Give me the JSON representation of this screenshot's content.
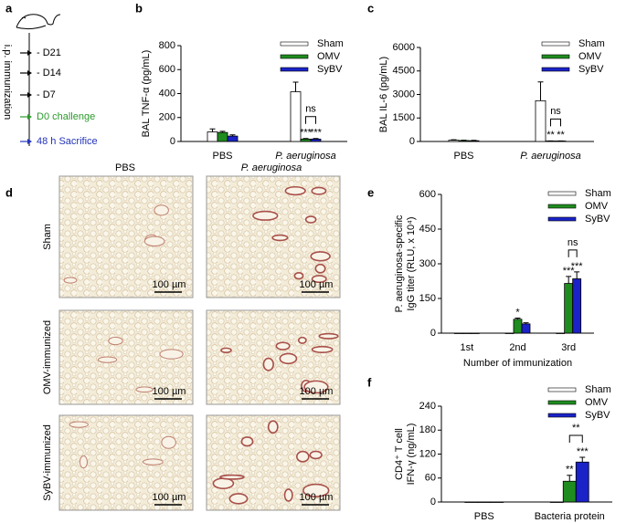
{
  "timeline": {
    "panel_label": "a",
    "axis_label": "i.p. immunization",
    "events": [
      "- D21",
      "- D14",
      "- D7",
      "D0 challenge",
      "48 h Sacrifice"
    ],
    "colors": [
      "#000000",
      "#000000",
      "#000000",
      "#2a9a2a",
      "#2233bb"
    ]
  },
  "histology": {
    "panel_label": "d",
    "columns": [
      "PBS",
      "P. aeruginosa"
    ],
    "rows": [
      "Sham",
      "OMV-immunized",
      "SyBV-immunized"
    ],
    "scale_bar": "100 µm"
  },
  "chart_data": [
    {
      "type": "bar",
      "panel_label": "b",
      "y_label": "BAL TNF-α (pg/mL)",
      "categories": [
        "PBS",
        "P. aeruginosa"
      ],
      "series": [
        {
          "name": "Sham",
          "color": "#ffffff",
          "values": [
            80,
            415
          ],
          "errors": [
            25,
            80
          ],
          "annotations": [
            null,
            null
          ]
        },
        {
          "name": "OMV",
          "color": "#1f8c1f",
          "values": [
            75,
            20
          ],
          "errors": [
            10,
            5
          ],
          "annotations": [
            null,
            "***"
          ]
        },
        {
          "name": "SyBV",
          "color": "#1a22c8",
          "values": [
            45,
            20
          ],
          "errors": [
            10,
            5
          ],
          "annotations": [
            null,
            "***"
          ]
        }
      ],
      "bracket_label": "ns",
      "ylim": [
        0,
        800
      ],
      "yticks": [
        0,
        200,
        400,
        600,
        800
      ],
      "grid": false
    },
    {
      "type": "bar",
      "panel_label": "c",
      "y_label": "BAL IL-6 (pg/mL)",
      "categories": [
        "PBS",
        "P. aeruginosa"
      ],
      "series": [
        {
          "name": "Sham",
          "color": "#ffffff",
          "values": [
            80,
            2600
          ],
          "errors": [
            30,
            1200
          ],
          "annotations": [
            null,
            null
          ]
        },
        {
          "name": "OMV",
          "color": "#1f8c1f",
          "values": [
            60,
            30
          ],
          "errors": [
            20,
            10
          ],
          "annotations": [
            null,
            "**"
          ]
        },
        {
          "name": "SyBV",
          "color": "#1a22c8",
          "values": [
            50,
            30
          ],
          "errors": [
            20,
            10
          ],
          "annotations": [
            null,
            "**"
          ]
        }
      ],
      "bracket_label": "ns",
      "ylim": [
        0,
        6000
      ],
      "yticks": [
        0,
        1500,
        3000,
        4500,
        6000
      ],
      "grid": false
    },
    {
      "type": "bar",
      "panel_label": "e",
      "y_label": [
        "P. aeruginosa-specific",
        "IgG titer (RLU, x 10⁴)"
      ],
      "x_label": "Number of immunization",
      "categories": [
        "1st",
        "2nd",
        "3rd"
      ],
      "series": [
        {
          "name": "Sham",
          "color": "#ffffff",
          "values": [
            0,
            0,
            0
          ],
          "errors": [
            0,
            0,
            0
          ],
          "annotations": [
            null,
            null,
            null
          ]
        },
        {
          "name": "OMV",
          "color": "#1f8c1f",
          "values": [
            0,
            60,
            215
          ],
          "errors": [
            0,
            5,
            30
          ],
          "annotations": [
            null,
            "*",
            "***"
          ]
        },
        {
          "name": "SyBV",
          "color": "#1a22c8",
          "values": [
            0,
            40,
            235
          ],
          "errors": [
            0,
            5,
            30
          ],
          "annotations": [
            null,
            null,
            "***"
          ]
        }
      ],
      "bracket_label": "ns",
      "ylim": [
        0,
        600
      ],
      "yticks": [
        0,
        150,
        300,
        450,
        600
      ],
      "grid": false
    },
    {
      "type": "bar",
      "panel_label": "f",
      "y_label": [
        "CD4⁺ T cell",
        "IFN-γ (ng/mL)"
      ],
      "categories": [
        "PBS",
        "Bacteria protein"
      ],
      "series": [
        {
          "name": "Sham",
          "color": "#ffffff",
          "values": [
            0,
            0
          ],
          "errors": [
            0,
            0
          ],
          "annotations": [
            null,
            null
          ]
        },
        {
          "name": "OMV",
          "color": "#1f8c1f",
          "values": [
            0,
            52
          ],
          "errors": [
            0,
            15
          ],
          "annotations": [
            null,
            "**"
          ]
        },
        {
          "name": "SyBV",
          "color": "#1a22c8",
          "values": [
            0,
            100
          ],
          "errors": [
            0,
            12
          ],
          "annotations": [
            null,
            "***"
          ]
        }
      ],
      "bracket_label": "**",
      "ylim": [
        0,
        240
      ],
      "yticks": [
        0,
        60,
        120,
        180,
        240
      ],
      "grid": false
    }
  ]
}
